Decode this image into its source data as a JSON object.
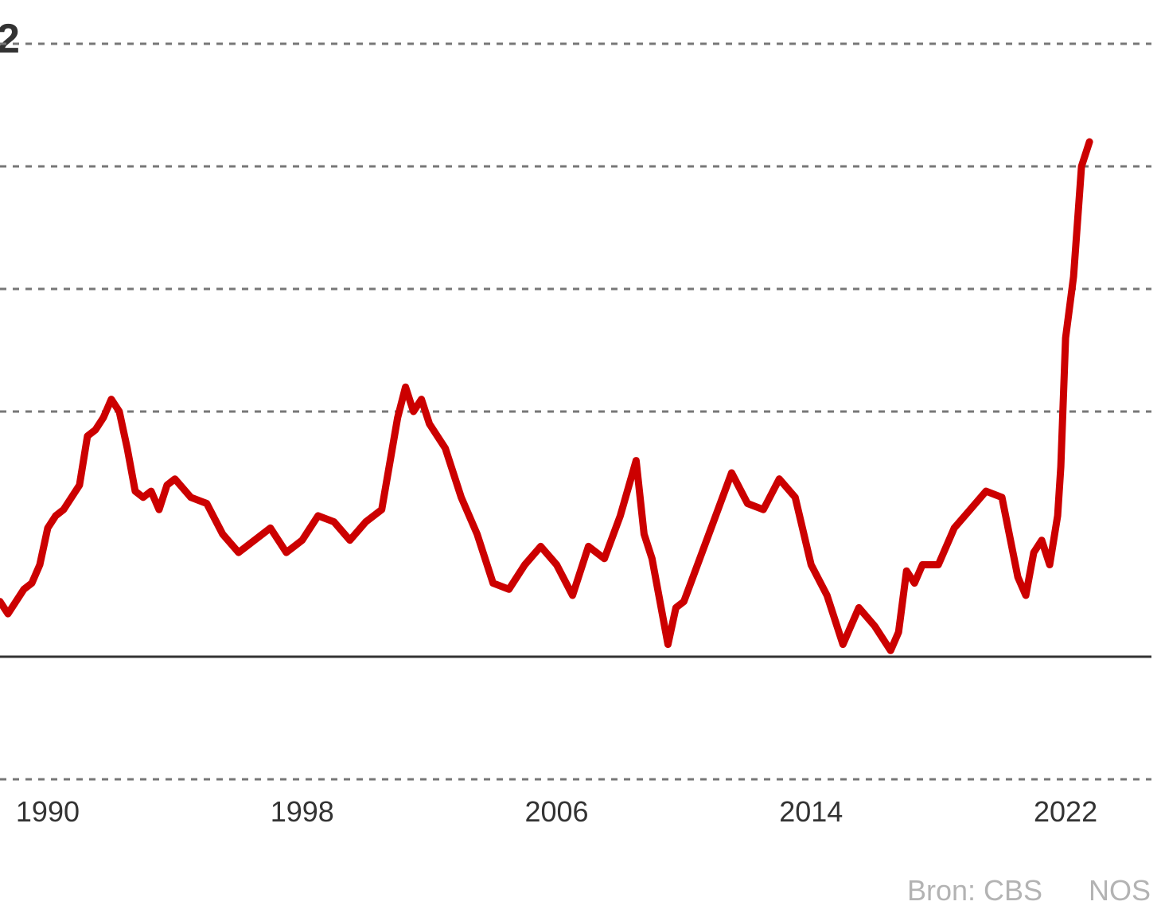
{
  "chart_data": {
    "type": "line",
    "title": "2",
    "xlabel": "",
    "ylabel": "",
    "x_ticks": [
      "1990",
      "1998",
      "2006",
      "2014",
      "2022"
    ],
    "x_range": [
      1988.5,
      2024.7
    ],
    "ylim": [
      -2,
      12
    ],
    "y_gridlines": [
      -2,
      4,
      6,
      8,
      10
    ],
    "y_zero": 0,
    "grid": true,
    "legend": "none",
    "series_color": "#cc0000",
    "series": [
      {
        "x": [
          1988.5,
          1988.75,
          1989.0,
          1989.25,
          1989.5,
          1989.75,
          1990.0,
          1990.25,
          1990.5,
          1990.75,
          1991.0,
          1991.25,
          1991.5,
          1991.75,
          1992.0,
          1992.25,
          1992.5,
          1992.75,
          1993.0,
          1993.25,
          1993.5,
          1993.75,
          1994.0,
          1994.5,
          1995.0,
          1995.5,
          1996.0,
          1996.5,
          1997.0,
          1997.5,
          1998.0,
          1998.5,
          1999.0,
          1999.5,
          2000.0,
          2000.5,
          2001.0,
          2001.25,
          2001.5,
          2001.75,
          2002.0,
          2002.5,
          2003.0,
          2003.5,
          2004.0,
          2004.5,
          2005.0,
          2005.5,
          2006.0,
          2006.5,
          2007.0,
          2007.5,
          2008.0,
          2008.5,
          2008.75,
          2009.0,
          2009.5,
          2009.75,
          2010.0,
          2010.5,
          2011.0,
          2011.5,
          2012.0,
          2012.5,
          2013.0,
          2013.5,
          2014.0,
          2014.5,
          2015.0,
          2015.25,
          2015.5,
          2016.0,
          2016.5,
          2016.75,
          2017.0,
          2017.25,
          2017.5,
          2018.0,
          2018.5,
          2019.0,
          2019.5,
          2020.0,
          2020.5,
          2020.75,
          2021.0,
          2021.25,
          2021.5,
          2021.75,
          2021.85,
          2022.0,
          2022.25,
          2022.5,
          2022.75
        ],
        "values": [
          0.9,
          0.7,
          0.9,
          1.1,
          1.2,
          1.5,
          2.1,
          2.3,
          2.4,
          2.6,
          2.8,
          3.6,
          3.7,
          3.9,
          4.2,
          4.0,
          3.4,
          2.7,
          2.6,
          2.7,
          2.4,
          2.8,
          2.9,
          2.6,
          2.5,
          2.0,
          1.7,
          1.9,
          2.1,
          1.7,
          1.9,
          2.3,
          2.2,
          1.9,
          2.2,
          2.4,
          3.9,
          4.4,
          4.0,
          4.2,
          3.8,
          3.4,
          2.6,
          2.0,
          1.2,
          1.1,
          1.5,
          1.8,
          1.5,
          1.0,
          1.8,
          1.6,
          2.3,
          3.2,
          2.0,
          1.6,
          0.2,
          0.8,
          0.9,
          1.6,
          2.3,
          3.0,
          2.5,
          2.4,
          2.9,
          2.6,
          1.5,
          1.0,
          0.2,
          0.5,
          0.8,
          0.5,
          0.1,
          0.4,
          1.4,
          1.2,
          1.5,
          1.5,
          2.1,
          2.4,
          2.7,
          2.6,
          1.3,
          1.0,
          1.7,
          1.9,
          1.5,
          2.3,
          3.1,
          5.2,
          6.2,
          8.0,
          8.4
        ]
      }
    ],
    "source": "Bron: CBS",
    "brand": "NOS"
  }
}
